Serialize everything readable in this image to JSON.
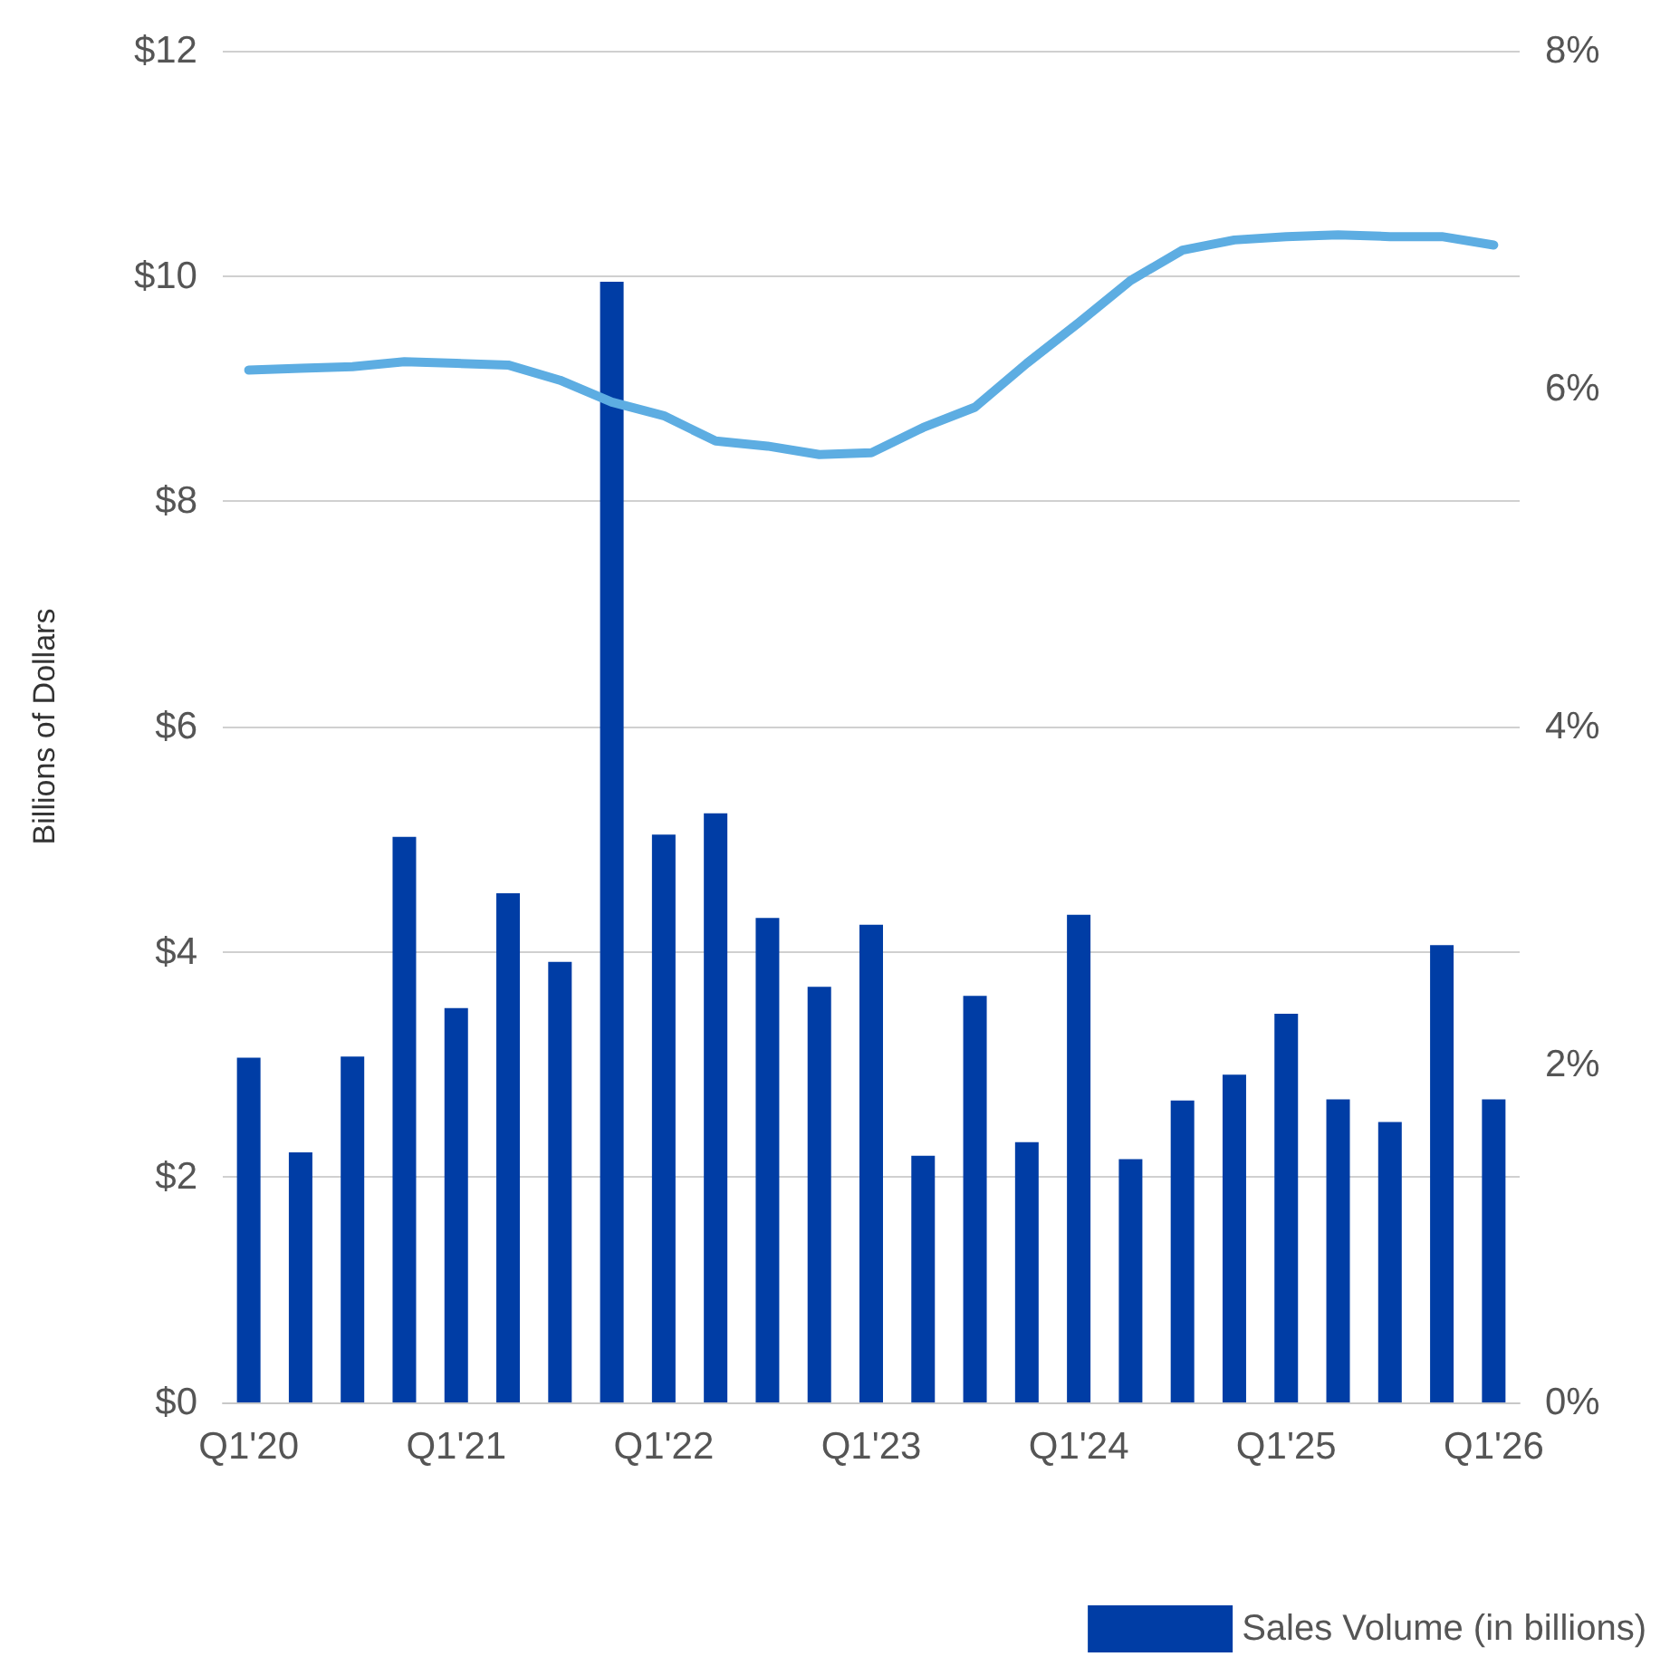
{
  "chart_data": {
    "type": "bar",
    "ylabel": "Billions of Dollars",
    "categories": [
      "Q1'20",
      null,
      null,
      null,
      "Q1'21",
      null,
      null,
      null,
      "Q1'22",
      null,
      null,
      null,
      "Q1'23",
      null,
      null,
      null,
      "Q1'24",
      null,
      null,
      null,
      "Q1'25",
      null,
      null,
      null,
      "Q1'26"
    ],
    "series": [
      {
        "name": "Sales Volume (in billions)",
        "color": "#003da5",
        "values": [
          3.06,
          2.22,
          3.07,
          5.02,
          3.5,
          4.52,
          3.91,
          9.95,
          5.04,
          5.23,
          4.3,
          3.69,
          4.24,
          2.19,
          3.61,
          2.31,
          4.33,
          2.16,
          2.68,
          2.91,
          3.45,
          2.69,
          2.49,
          4.06,
          2.69
        ]
      },
      {
        "type": "line",
        "axis": "y2",
        "color": "#5dade2",
        "marker": "none",
        "line_style": "solid",
        "values": [
          6.11,
          6.12,
          6.13,
          6.16,
          6.15,
          6.14,
          6.05,
          5.92,
          5.84,
          5.69,
          5.66,
          5.61,
          5.62,
          5.77,
          5.89,
          6.15,
          6.39,
          6.64,
          6.82,
          6.88,
          6.9,
          6.91,
          6.9,
          6.9,
          6.85
        ]
      }
    ],
    "ylim": [
      0,
      12
    ],
    "yticks": [
      {
        "value": 0,
        "label": "$0"
      },
      {
        "value": 2,
        "label": "$2"
      },
      {
        "value": 4,
        "label": "$4"
      },
      {
        "value": 6,
        "label": "$6"
      },
      {
        "value": 8,
        "label": "$8"
      },
      {
        "value": 10,
        "label": "$10"
      },
      {
        "value": 12,
        "label": "$12"
      }
    ],
    "y2lim": [
      0,
      8
    ],
    "y2ticks": [
      {
        "value": 0,
        "label": "0%"
      },
      {
        "value": 2,
        "label": "2%"
      },
      {
        "value": 4,
        "label": "4%"
      },
      {
        "value": 6,
        "label": "6%"
      },
      {
        "value": 8,
        "label": "8%"
      }
    ],
    "grid": "y",
    "legend": "bottom right"
  }
}
